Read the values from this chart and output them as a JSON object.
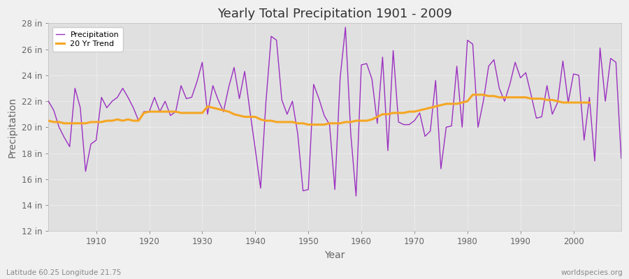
{
  "title": "Yearly Total Precipitation 1901 - 2009",
  "xlabel": "Year",
  "ylabel": "Precipitation",
  "background_color": "#f0f0f0",
  "plot_bg_color": "#e0e0e0",
  "years": [
    1901,
    1902,
    1903,
    1904,
    1905,
    1906,
    1907,
    1908,
    1909,
    1910,
    1911,
    1912,
    1913,
    1914,
    1915,
    1916,
    1917,
    1918,
    1919,
    1920,
    1921,
    1922,
    1923,
    1924,
    1925,
    1926,
    1927,
    1928,
    1929,
    1930,
    1931,
    1932,
    1933,
    1934,
    1935,
    1936,
    1937,
    1938,
    1939,
    1940,
    1941,
    1942,
    1943,
    1944,
    1945,
    1946,
    1947,
    1948,
    1949,
    1950,
    1951,
    1952,
    1953,
    1954,
    1955,
    1956,
    1957,
    1958,
    1959,
    1960,
    1961,
    1962,
    1963,
    1964,
    1965,
    1966,
    1967,
    1968,
    1969,
    1970,
    1971,
    1972,
    1973,
    1974,
    1975,
    1976,
    1977,
    1978,
    1979,
    1980,
    1981,
    1982,
    1983,
    1984,
    1985,
    1986,
    1987,
    1988,
    1989,
    1990,
    1991,
    1992,
    1993,
    1994,
    1995,
    1996,
    1997,
    1998,
    1999,
    2000,
    2001,
    2002,
    2003,
    2004,
    2005,
    2006,
    2007,
    2008,
    2009
  ],
  "precip": [
    22.0,
    21.3,
    20.0,
    19.2,
    18.5,
    23.0,
    21.5,
    16.6,
    18.7,
    19.0,
    22.3,
    21.5,
    22.0,
    22.3,
    23.0,
    22.3,
    21.5,
    20.5,
    21.2,
    21.2,
    22.3,
    21.2,
    22.0,
    20.9,
    21.2,
    23.2,
    22.2,
    22.3,
    23.5,
    25.0,
    21.0,
    23.2,
    22.1,
    21.2,
    23.1,
    24.6,
    22.2,
    24.3,
    21.2,
    18.3,
    15.3,
    21.9,
    27.0,
    26.7,
    22.1,
    21.0,
    22.0,
    19.5,
    15.1,
    15.2,
    23.3,
    22.2,
    20.9,
    20.2,
    15.2,
    23.8,
    27.7,
    19.5,
    14.7,
    24.8,
    24.9,
    23.7,
    20.3,
    25.4,
    18.2,
    25.9,
    20.4,
    20.2,
    20.2,
    20.5,
    21.1,
    19.3,
    19.7,
    23.6,
    16.8,
    20.0,
    20.1,
    24.7,
    20.0,
    26.7,
    26.4,
    20.0,
    22.0,
    24.7,
    25.2,
    23.0,
    22.0,
    23.3,
    25.0,
    23.8,
    24.2,
    22.5,
    20.7,
    20.8,
    23.2,
    21.0,
    21.9,
    25.1,
    21.9,
    24.1,
    24.0,
    19.0,
    22.3,
    17.4,
    26.1,
    22.0,
    25.3,
    25.0,
    17.6
  ],
  "trend": [
    20.5,
    20.4,
    20.4,
    20.3,
    20.3,
    20.3,
    20.3,
    20.3,
    20.4,
    20.4,
    20.4,
    20.5,
    20.5,
    20.6,
    20.5,
    20.6,
    20.5,
    20.5,
    21.1,
    21.2,
    21.2,
    21.2,
    21.2,
    21.2,
    21.2,
    21.1,
    21.1,
    21.1,
    21.1,
    21.1,
    21.6,
    21.5,
    21.4,
    21.3,
    21.2,
    21.0,
    20.9,
    20.8,
    20.8,
    20.8,
    20.6,
    20.5,
    20.5,
    20.4,
    20.4,
    20.4,
    20.4,
    20.3,
    20.3,
    20.2,
    20.2,
    20.2,
    20.2,
    20.3,
    20.3,
    20.3,
    20.4,
    20.4,
    20.5,
    20.5,
    20.5,
    20.6,
    20.8,
    21.0,
    21.0,
    21.1,
    21.1,
    21.1,
    21.2,
    21.2,
    21.3,
    21.4,
    21.5,
    21.6,
    21.7,
    21.8,
    21.8,
    21.8,
    21.9,
    22.0,
    22.5,
    22.5,
    22.5,
    22.4,
    22.4,
    22.3,
    22.3,
    22.3,
    22.3,
    22.3,
    22.3,
    22.2,
    22.2,
    22.2,
    22.1,
    22.1,
    22.0,
    21.9,
    21.9,
    21.9,
    21.9,
    21.9,
    21.9,
    null,
    null,
    null,
    null,
    null,
    null
  ],
  "precip_color": "#9b30c0",
  "trend_color": "#f5a623",
  "ylim": [
    12,
    28
  ],
  "yticks": [
    12,
    14,
    16,
    18,
    20,
    22,
    24,
    26,
    28
  ],
  "grid_color": "#ffffff",
  "legend_loc": "upper left",
  "footnote_left": "Latitude 60.25 Longitude 21.75",
  "footnote_right": "worldspecies.org",
  "title_color": "#333333",
  "label_color": "#666666",
  "tick_color": "#666666"
}
